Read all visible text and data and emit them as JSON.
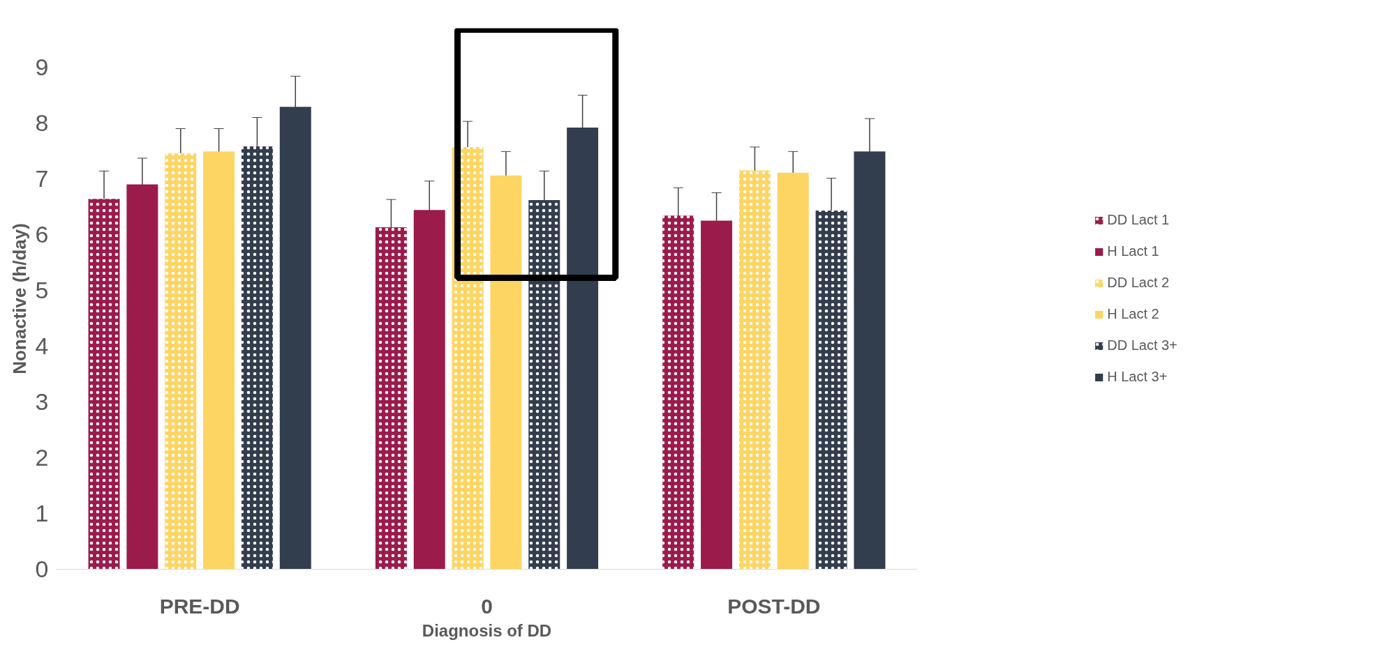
{
  "chart_data": {
    "type": "bar",
    "ylabel": "Nonactive (h/day)",
    "xlabel": "Diagnosis of DD",
    "categories": [
      "PRE-DD",
      "0",
      "POST-DD"
    ],
    "ylim": [
      0,
      9.7
    ],
    "yticks": [
      0,
      1,
      2,
      3,
      4,
      5,
      6,
      7,
      8,
      9
    ],
    "grid": false,
    "legend": "right",
    "series": [
      {
        "name": "DD Lact 1",
        "color": "#9b1b4b",
        "values": [
          6.64,
          6.13,
          6.34
        ],
        "errors": [
          0.5,
          0.5,
          0.5
        ]
      },
      {
        "name": "H Lact 1",
        "color": "#9b1b4b",
        "values": [
          6.9,
          6.44,
          6.25
        ],
        "errors": [
          0.47,
          0.52,
          0.5
        ]
      },
      {
        "name": "DD Lact 2",
        "color": "#fdd563",
        "values": [
          7.46,
          7.57,
          7.15
        ],
        "errors": [
          0.44,
          0.46,
          0.42
        ]
      },
      {
        "name": "H Lact 2",
        "color": "#fdd563",
        "values": [
          7.49,
          7.06,
          7.11
        ],
        "errors": [
          0.41,
          0.43,
          0.38
        ]
      },
      {
        "name": "DD Lact 3+",
        "color": "#323d4e",
        "values": [
          7.58,
          6.62,
          6.43
        ],
        "errors": [
          0.52,
          0.52,
          0.58
        ]
      },
      {
        "name": "H Lact 3+",
        "color": "#323d4e",
        "values": [
          8.29,
          7.92,
          7.49
        ],
        "errors": [
          0.55,
          0.58,
          0.59
        ]
      }
    ]
  }
}
